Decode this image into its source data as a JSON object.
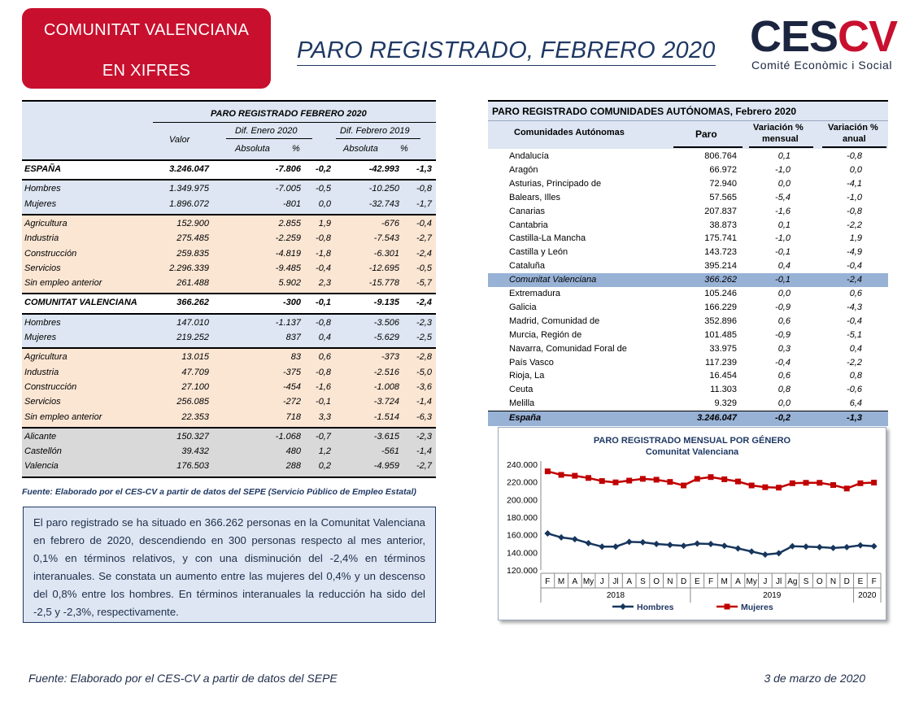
{
  "banner": {
    "line1": "COMUNITAT VALENCIANA",
    "line2": "EN XIFRES"
  },
  "page_title": "PARO REGISTRADO, FEBRERO 2020",
  "logo": {
    "mark_a": "CES",
    "mark_b": "CV",
    "subtitle": "Comité Econòmic i Social"
  },
  "left_table": {
    "title": "PARO REGISTRADO FEBRERO 2020",
    "valor": "Valor",
    "dif_enero": "Dif. Enero 2020",
    "dif_febrero": "Dif. Febrero 2019",
    "absoluta": "Absoluta",
    "pct": "%",
    "sections": [
      {
        "bg": "white",
        "rows": [
          {
            "label": "ESPAÑA",
            "bold": true,
            "valor": "3.246.047",
            "a1": "-7.806",
            "p1": "-0,2",
            "a2": "-42.993",
            "p2": "-1,3"
          }
        ]
      },
      {
        "bg": "blue",
        "rows": [
          {
            "label": "Hombres",
            "valor": "1.349.975",
            "a1": "-7.005",
            "p1": "-0,5",
            "a2": "-10.250",
            "p2": "-0,8"
          },
          {
            "label": "Mujeres",
            "valor": "1.896.072",
            "a1": "-801",
            "p1": "0,0",
            "a2": "-32.743",
            "p2": "-1,7"
          }
        ]
      },
      {
        "bg": "peach",
        "rows": [
          {
            "label": "Agricultura",
            "valor": "152.900",
            "a1": "2.855",
            "p1": "1,9",
            "a2": "-676",
            "p2": "-0,4"
          },
          {
            "label": "Industria",
            "valor": "275.485",
            "a1": "-2.259",
            "p1": "-0,8",
            "a2": "-7.543",
            "p2": "-2,7"
          },
          {
            "label": "Construcción",
            "valor": "259.835",
            "a1": "-4.819",
            "p1": "-1,8",
            "a2": "-6.301",
            "p2": "-2,4"
          },
          {
            "label": "Servicios",
            "valor": "2.296.339",
            "a1": "-9.485",
            "p1": "-0,4",
            "a2": "-12.695",
            "p2": "-0,5"
          },
          {
            "label": "Sin empleo anterior",
            "valor": "261.488",
            "a1": "5.902",
            "p1": "2,3",
            "a2": "-15.778",
            "p2": "-5,7"
          }
        ]
      },
      {
        "bg": "white",
        "rows": [
          {
            "label": "COMUNITAT VALENCIANA",
            "bold": true,
            "valor": "366.262",
            "a1": "-300",
            "p1": "-0,1",
            "a2": "-9.135",
            "p2": "-2,4"
          }
        ]
      },
      {
        "bg": "blue",
        "rows": [
          {
            "label": "Hombres",
            "valor": "147.010",
            "a1": "-1.137",
            "p1": "-0,8",
            "a2": "-3.506",
            "p2": "-2,3"
          },
          {
            "label": "Mujeres",
            "valor": "219.252",
            "a1": "837",
            "p1": "0,4",
            "a2": "-5.629",
            "p2": "-2,5"
          }
        ]
      },
      {
        "bg": "peach",
        "rows": [
          {
            "label": "Agricultura",
            "valor": "13.015",
            "a1": "83",
            "p1": "0,6",
            "a2": "-373",
            "p2": "-2,8"
          },
          {
            "label": "Industria",
            "valor": "47.709",
            "a1": "-375",
            "p1": "-0,8",
            "a2": "-2.516",
            "p2": "-5,0"
          },
          {
            "label": "Construcción",
            "valor": "27.100",
            "a1": "-454",
            "p1": "-1,6",
            "a2": "-1.008",
            "p2": "-3,6"
          },
          {
            "label": "Servicios",
            "valor": "256.085",
            "a1": "-272",
            "p1": "-0,1",
            "a2": "-3.724",
            "p2": "-1,4"
          },
          {
            "label": "Sin empleo anterior",
            "valor": "22.353",
            "a1": "718",
            "p1": "3,3",
            "a2": "-1.514",
            "p2": "-6,3"
          }
        ]
      },
      {
        "bg": "grey",
        "rows": [
          {
            "label": "Alicante",
            "valor": "150.327",
            "a1": "-1.068",
            "p1": "-0,7",
            "a2": "-3.615",
            "p2": "-2,3"
          },
          {
            "label": "Castellón",
            "valor": "39.432",
            "a1": "480",
            "p1": "1,2",
            "a2": "-561",
            "p2": "-1,4"
          },
          {
            "label": "Valencia",
            "valor": "176.503",
            "a1": "288",
            "p1": "0,2",
            "a2": "-4.959",
            "p2": "-2,7"
          }
        ]
      }
    ],
    "source": "Fuente: Elaborado por el CES-CV a partir de  datos del SEPE (Servicio Público de Empleo Estatal)"
  },
  "summary": "El paro registrado se ha situado en 366.262 personas en la Comunitat Valenciana en febrero de 2020, descendiendo en 300 personas respecto al mes anterior, 0,1% en términos relativos, y con una disminución del -2,4% en términos interanuales. Se constata un aumento entre las mujeres del 0,4% y un descenso del 0,8% entre los hombres. En términos interanuales la reducción ha sido del -2,5 y -2,3%, respectivamente.",
  "right_table": {
    "title": "PARO REGISTRADO COMUNIDADES AUTÓNOMAS, Febrero 2020",
    "h_ccaa": "Comunidades Autónomas",
    "h_paro": "Paro",
    "h_mensual_1": "Variación %",
    "h_mensual_2": "mensual",
    "h_anual_1": "Variación %",
    "h_anual_2": "anual",
    "rows": [
      {
        "name": "Andalucía",
        "paro": "806.764",
        "mensual": "0,1",
        "anual": "-0,8"
      },
      {
        "name": "Aragón",
        "paro": "66.972",
        "mensual": "-1,0",
        "anual": "0,0"
      },
      {
        "name": "Asturias, Principado de",
        "paro": "72.940",
        "mensual": "0,0",
        "anual": "-4,1"
      },
      {
        "name": "Balears, Illes",
        "paro": "57.565",
        "mensual": "-5,4",
        "anual": "-1,0"
      },
      {
        "name": "Canarias",
        "paro": "207.837",
        "mensual": "-1,6",
        "anual": "-0,8"
      },
      {
        "name": "Cantabria",
        "paro": "38.873",
        "mensual": "0,1",
        "anual": "-2,2"
      },
      {
        "name": "Castilla-La Mancha",
        "paro": "175.741",
        "mensual": "-1,0",
        "anual": "1,9"
      },
      {
        "name": "Castilla y León",
        "paro": "143.723",
        "mensual": "-0,1",
        "anual": "-4,9"
      },
      {
        "name": "Cataluña",
        "paro": "395.214",
        "mensual": "0,4",
        "anual": "-0,4"
      },
      {
        "name": "Comunitat Valenciana",
        "paro": "366.262",
        "mensual": "-0,1",
        "anual": "-2,4",
        "highlight": true
      },
      {
        "name": "Extremadura",
        "paro": "105.246",
        "mensual": "0,0",
        "anual": "0,6"
      },
      {
        "name": "Galicia",
        "paro": "166.229",
        "mensual": "-0,9",
        "anual": "-4,3"
      },
      {
        "name": "Madrid, Comunidad de",
        "paro": "352.896",
        "mensual": "0,6",
        "anual": "-0,4"
      },
      {
        "name": "Murcia, Región de",
        "paro": "101.485",
        "mensual": "-0,9",
        "anual": "-5,1"
      },
      {
        "name": "Navarra, Comunidad Foral de",
        "paro": "33.975",
        "mensual": "0,3",
        "anual": "0,4"
      },
      {
        "name": "País Vasco",
        "paro": "117.239",
        "mensual": "-0,4",
        "anual": "-2,2"
      },
      {
        "name": "Rioja, La",
        "paro": "16.454",
        "mensual": "0,6",
        "anual": "0,8"
      },
      {
        "name": "Ceuta",
        "paro": "11.303",
        "mensual": "0,8",
        "anual": "-0,6"
      },
      {
        "name": "Melilla",
        "paro": "9.329",
        "mensual": "0,0",
        "anual": "6,4"
      }
    ],
    "total": {
      "name": "España",
      "paro": "3.246.047",
      "mensual": "-0,2",
      "anual": "-1,3"
    }
  },
  "chart_data": {
    "type": "line",
    "title": "PARO REGISTRADO MENSUAL POR GÉNERO",
    "subtitle": "Comunitat Valenciana",
    "categories": [
      "F",
      "M",
      "A",
      "My",
      "J",
      "Jl",
      "A",
      "S",
      "O",
      "N",
      "D",
      "E",
      "F",
      "M",
      "A",
      "My",
      "J",
      "Jl",
      "Ag",
      "S",
      "O",
      "N",
      "D",
      "E",
      "F"
    ],
    "year_labels": [
      "2018",
      "2019",
      "2020"
    ],
    "year_spans": [
      [
        0,
        10
      ],
      [
        11,
        22
      ],
      [
        23,
        24
      ]
    ],
    "ylim": [
      120000,
      240000
    ],
    "yticks": [
      "120.000",
      "140.000",
      "160.000",
      "180.000",
      "200.000",
      "220.000",
      "240.000"
    ],
    "ytick_values": [
      120000,
      140000,
      160000,
      180000,
      200000,
      220000,
      240000
    ],
    "series": [
      {
        "name": "Hombres",
        "color": "#17365d",
        "marker": "diamond",
        "values": [
          161500,
          157000,
          155000,
          150500,
          146500,
          146500,
          152000,
          151500,
          149500,
          148500,
          147500,
          150000,
          149500,
          147500,
          144500,
          141000,
          137500,
          139000,
          147000,
          146500,
          146000,
          145000,
          146000,
          148000,
          147010
        ]
      },
      {
        "name": "Mujeres",
        "color": "#c00000",
        "marker": "square",
        "values": [
          232000,
          228000,
          227000,
          224500,
          221000,
          219500,
          221500,
          223500,
          222500,
          220000,
          216000,
          223500,
          225500,
          223000,
          220500,
          216000,
          214000,
          213500,
          218500,
          219000,
          219000,
          216500,
          212500,
          218500,
          219252
        ]
      }
    ]
  },
  "footer": {
    "source": "Fuente: Elaborado por el CES-CV a partir de datos del SEPE",
    "date": "3 de marzo de 2020"
  }
}
